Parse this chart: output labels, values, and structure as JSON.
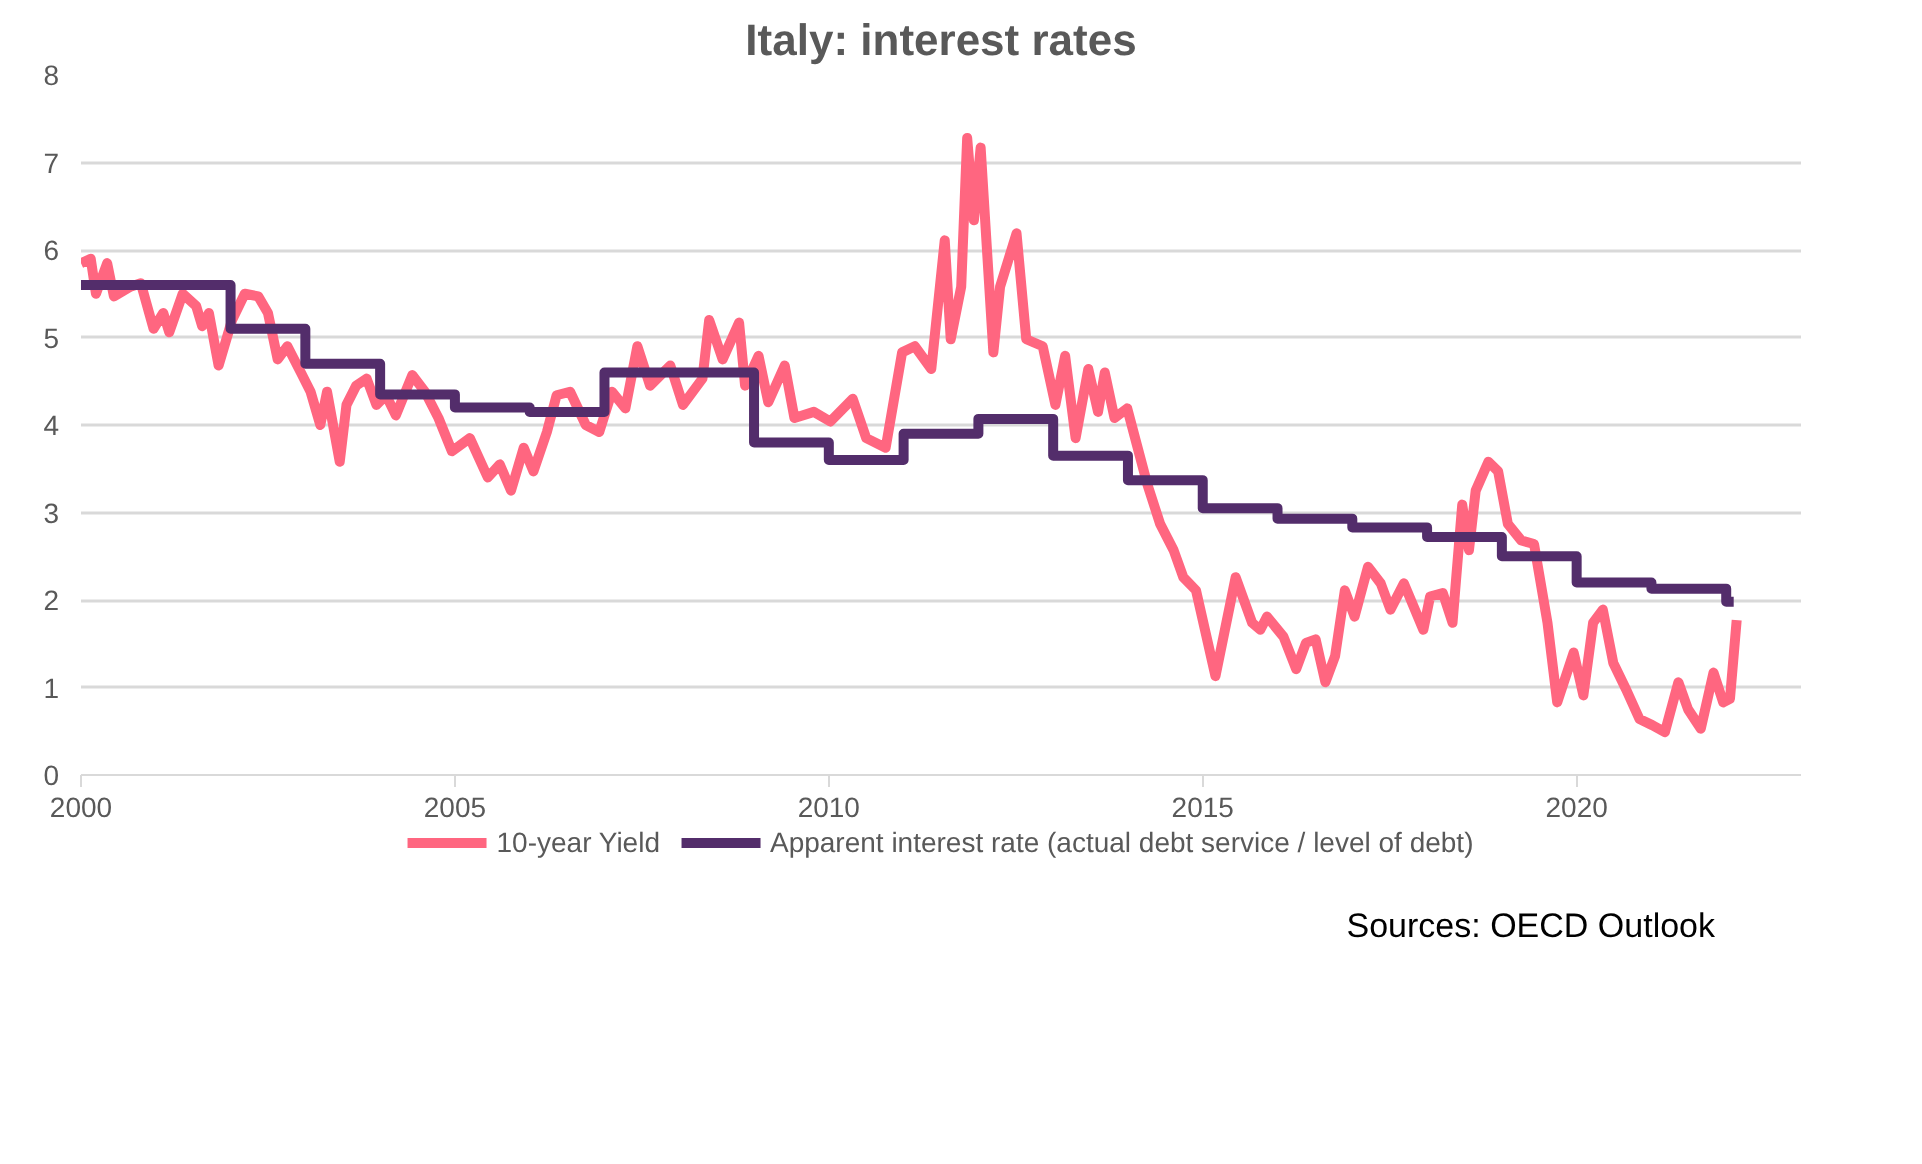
{
  "chart_data": {
    "type": "line",
    "title": "Italy: interest rates",
    "xlim": [
      2000,
      2023
    ],
    "xticks": [
      2000,
      2005,
      2010,
      2015,
      2020
    ],
    "ylim": [
      0,
      8
    ],
    "yticks": [
      0,
      1,
      2,
      3,
      4,
      5,
      6,
      7,
      8
    ],
    "grid": "y",
    "legend": "bottom",
    "line_style": "solid",
    "annotations": [
      "Sources: OECD Outlook"
    ],
    "series": [
      {
        "name": "10-year Yield",
        "type": "line",
        "color": "#ff6680",
        "x": [
          2000.0,
          2000.13,
          2000.2,
          2000.35,
          2000.44,
          2000.66,
          2000.8,
          2000.97,
          2001.1,
          2001.18,
          2001.36,
          2001.54,
          2001.62,
          2001.71,
          2001.84,
          2002.02,
          2002.19,
          2002.37,
          2002.5,
          2002.63,
          2002.76,
          2002.94,
          2003.07,
          2003.2,
          2003.29,
          2003.46,
          2003.55,
          2003.68,
          2003.82,
          2003.95,
          2004.08,
          2004.21,
          2004.43,
          2004.6,
          2004.78,
          2004.96,
          2005.2,
          2005.44,
          2005.6,
          2005.75,
          2005.92,
          2006.05,
          2006.23,
          2006.36,
          2006.54,
          2006.75,
          2006.93,
          2007.1,
          2007.28,
          2007.44,
          2007.61,
          2007.88,
          2008.05,
          2008.31,
          2008.4,
          2008.58,
          2008.8,
          2008.88,
          2009.06,
          2009.19,
          2009.41,
          2009.54,
          2009.8,
          2010.02,
          2010.32,
          2010.5,
          2010.76,
          2010.98,
          2011.15,
          2011.37,
          2011.55,
          2011.63,
          2011.77,
          2011.85,
          2011.94,
          2012.03,
          2012.2,
          2012.29,
          2012.51,
          2012.64,
          2012.86,
          2013.03,
          2013.16,
          2013.3,
          2013.47,
          2013.6,
          2013.69,
          2013.82,
          2013.99,
          2014.26,
          2014.43,
          2014.61,
          2014.74,
          2014.91,
          2015.17,
          2015.44,
          2015.66,
          2015.77,
          2015.86,
          2016.08,
          2016.25,
          2016.38,
          2016.51,
          2016.64,
          2016.77,
          2016.9,
          2017.03,
          2017.21,
          2017.38,
          2017.51,
          2017.69,
          2017.95,
          2018.04,
          2018.21,
          2018.34,
          2018.47,
          2018.56,
          2018.65,
          2018.82,
          2018.95,
          2019.08,
          2019.26,
          2019.43,
          2019.61,
          2019.74,
          2019.96,
          2020.09,
          2020.22,
          2020.35,
          2020.49,
          2020.66,
          2020.84,
          2021.01,
          2021.18,
          2021.36,
          2021.49,
          2021.66,
          2021.83,
          2021.96,
          2022.05,
          2022.14
        ],
        "values": [
          5.85,
          5.9,
          5.5,
          5.85,
          5.47,
          5.58,
          5.62,
          5.1,
          5.28,
          5.06,
          5.5,
          5.36,
          5.13,
          5.28,
          4.68,
          5.2,
          5.5,
          5.47,
          5.28,
          4.75,
          4.9,
          4.6,
          4.38,
          4.0,
          4.38,
          3.58,
          4.23,
          4.45,
          4.53,
          4.23,
          4.34,
          4.11,
          4.57,
          4.38,
          4.08,
          3.7,
          3.85,
          3.4,
          3.55,
          3.25,
          3.74,
          3.47,
          3.92,
          4.34,
          4.38,
          4.0,
          3.92,
          4.38,
          4.19,
          4.9,
          4.45,
          4.68,
          4.23,
          4.53,
          5.2,
          4.75,
          5.17,
          4.45,
          4.79,
          4.26,
          4.68,
          4.08,
          4.15,
          4.04,
          4.3,
          3.85,
          3.74,
          4.83,
          4.9,
          4.64,
          6.11,
          4.98,
          5.58,
          7.28,
          6.34,
          7.17,
          4.83,
          5.58,
          6.19,
          4.98,
          4.9,
          4.23,
          4.79,
          3.85,
          4.64,
          4.15,
          4.6,
          4.08,
          4.19,
          3.32,
          2.87,
          2.57,
          2.26,
          2.11,
          1.13,
          2.26,
          1.74,
          1.66,
          1.81,
          1.58,
          1.21,
          1.51,
          1.55,
          1.06,
          1.36,
          2.11,
          1.81,
          2.38,
          2.19,
          1.89,
          2.19,
          1.66,
          2.04,
          2.08,
          1.74,
          3.09,
          2.57,
          3.25,
          3.58,
          3.47,
          2.87,
          2.68,
          2.64,
          1.74,
          0.83,
          1.4,
          0.91,
          1.74,
          1.89,
          1.28,
          0.98,
          0.64,
          0.57,
          0.49,
          1.06,
          0.75,
          0.53,
          1.17,
          0.83,
          0.87,
          1.77
        ]
      },
      {
        "name": "Apparent interest rate (actual debt service / level of debt)",
        "type": "step",
        "color": "#532d6b",
        "x": [
          2000,
          2001,
          2002,
          2003,
          2004,
          2005,
          2006,
          2007,
          2008,
          2009,
          2010,
          2011,
          2012,
          2013,
          2014,
          2015,
          2016,
          2017,
          2018,
          2019,
          2020,
          2021,
          2022,
          2022.1
        ],
        "values": [
          5.6,
          5.6,
          5.1,
          4.7,
          4.35,
          4.2,
          4.15,
          4.6,
          4.6,
          3.8,
          3.6,
          3.9,
          4.07,
          3.65,
          3.37,
          3.05,
          2.93,
          2.83,
          2.72,
          2.5,
          2.2,
          2.13,
          1.98,
          1.98
        ]
      }
    ]
  }
}
